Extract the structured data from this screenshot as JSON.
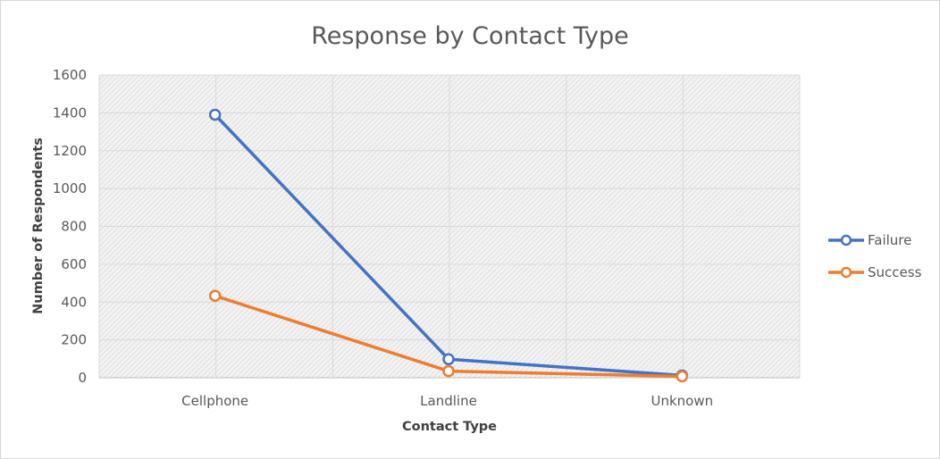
{
  "chart_data": {
    "type": "line",
    "title": "Response by Contact Type",
    "xlabel": "Contact Type",
    "ylabel": "Number of Respondents",
    "categories": [
      "Cellphone",
      "Landline",
      "Unknown"
    ],
    "ylim": [
      0,
      1600
    ],
    "yticks": [
      "0",
      "200",
      "400",
      "600",
      "800",
      "1000",
      "1200",
      "1400",
      "1600"
    ],
    "grid": true,
    "legend_position": "right",
    "series": [
      {
        "name": "Failure",
        "values": [
          1390,
          98,
          12
        ],
        "color": "#4472C4"
      },
      {
        "name": "Success",
        "values": [
          433,
          35,
          7
        ],
        "color": "#ED7D31"
      }
    ]
  }
}
